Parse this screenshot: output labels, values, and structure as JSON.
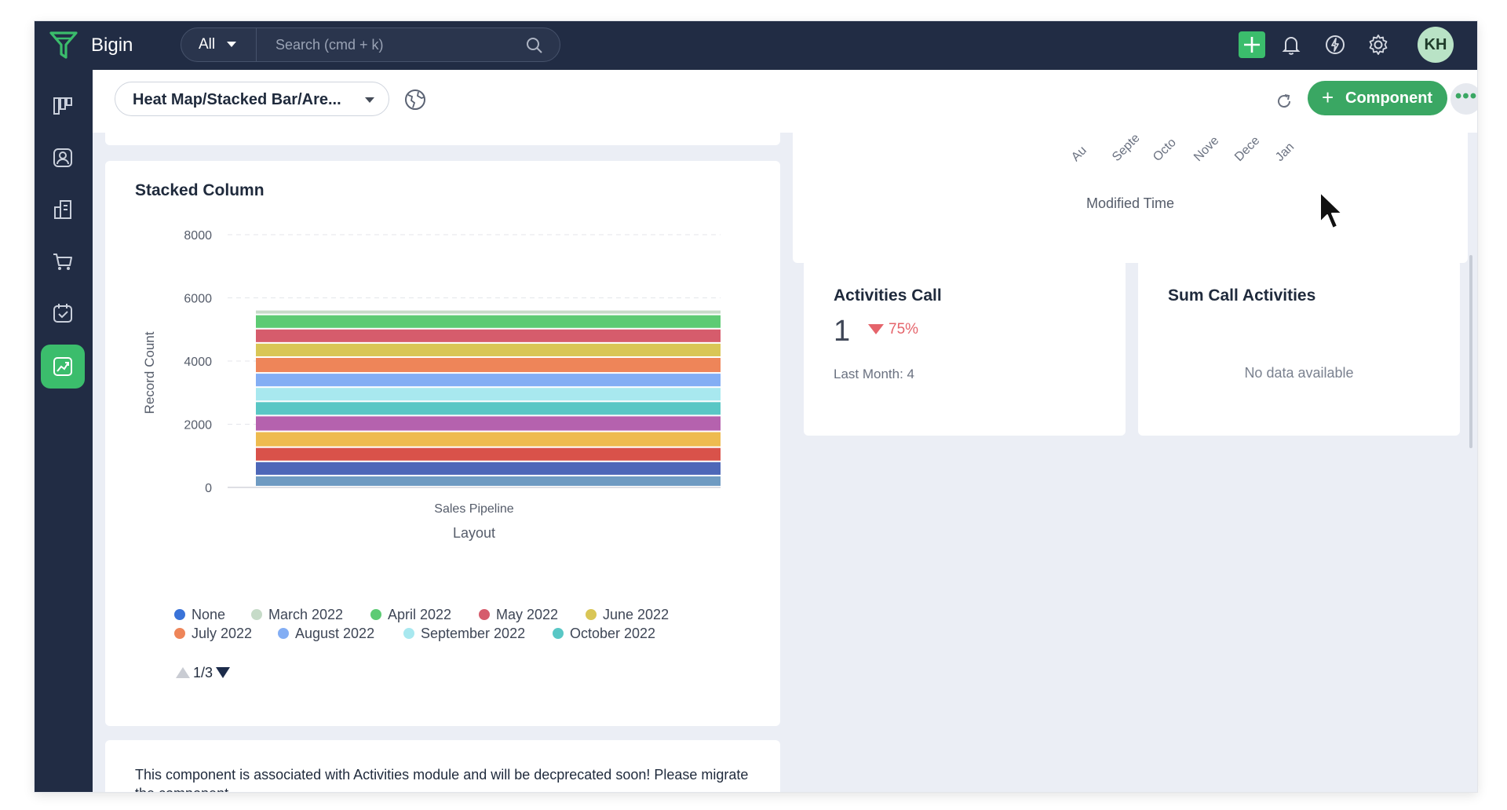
{
  "app": {
    "title": "Bigin"
  },
  "search": {
    "scope": "All",
    "placeholder": "Search (cmd + k)"
  },
  "topbar": {
    "icons": [
      "add-icon",
      "bell-icon",
      "feature-icon",
      "gear-icon"
    ],
    "avatar_initials": "KH"
  },
  "sidebar": {
    "items": [
      {
        "name": "pipelines",
        "icon": "pipeline-icon"
      },
      {
        "name": "contacts",
        "icon": "contact-icon"
      },
      {
        "name": "companies",
        "icon": "company-icon"
      },
      {
        "name": "products",
        "icon": "cart-icon"
      },
      {
        "name": "activities",
        "icon": "calendar-check-icon"
      },
      {
        "name": "dashboards",
        "icon": "chart-icon",
        "active": true
      }
    ]
  },
  "subheader": {
    "dashboard_name": "Heat Map/Stacked Bar/Are...",
    "add_component_label": "Component",
    "more_label": "•••"
  },
  "stacked_column": {
    "title": "Stacked Column",
    "legend": [
      {
        "label": "None",
        "color": "#3a73d8"
      },
      {
        "label": "March 2022",
        "color": "#c6dbc8"
      },
      {
        "label": "April 2022",
        "color": "#5dcb74"
      },
      {
        "label": "May 2022",
        "color": "#d65c6c"
      },
      {
        "label": "June 2022",
        "color": "#d9c656"
      },
      {
        "label": "July 2022",
        "color": "#ee8559"
      },
      {
        "label": "August 2022",
        "color": "#83aef4"
      },
      {
        "label": "September 2022",
        "color": "#a8e8ef"
      },
      {
        "label": "October 2022",
        "color": "#59c7c5"
      }
    ],
    "legend_page": "1/3"
  },
  "chart_data": {
    "type": "bar",
    "stacked": true,
    "categories": [
      "Sales Pipeline"
    ],
    "xlabel": "Layout",
    "ylabel": "Record Count",
    "ylim": [
      0,
      8000
    ],
    "yticks": [
      0,
      2000,
      4000,
      6000,
      8000
    ],
    "grid": true,
    "legend_position": "bottom",
    "series": [
      {
        "name": "None",
        "values": [
          350
        ],
        "color": "#6f9bc2"
      },
      {
        "name": "",
        "values": [
          450
        ],
        "color": "#4d67b8"
      },
      {
        "name": "",
        "values": [
          450
        ],
        "color": "#d9524a"
      },
      {
        "name": "",
        "values": [
          500
        ],
        "color": "#eebb4f"
      },
      {
        "name": "",
        "values": [
          500
        ],
        "color": "#b562ae"
      },
      {
        "name": "October 2022",
        "values": [
          450
        ],
        "color": "#59c7c5"
      },
      {
        "name": "September 2022",
        "values": [
          450
        ],
        "color": "#a8e8ef"
      },
      {
        "name": "August 2022",
        "values": [
          450
        ],
        "color": "#83aef4"
      },
      {
        "name": "July 2022",
        "values": [
          500
        ],
        "color": "#ee8559"
      },
      {
        "name": "June 2022",
        "values": [
          450
        ],
        "color": "#d9c656"
      },
      {
        "name": "May 2022",
        "values": [
          450
        ],
        "color": "#d65c6c"
      },
      {
        "name": "April 2022",
        "values": [
          450
        ],
        "color": "#5dcb74"
      },
      {
        "name": "March 2022",
        "values": [
          150
        ],
        "color": "#c6dbc8"
      }
    ]
  },
  "modified_time": {
    "axis_title": "Modified Time",
    "visible_ticks": [
      "Au",
      "Septe",
      "Octo",
      "Nove",
      "Dece",
      "Jan"
    ]
  },
  "activities_call": {
    "title": "Activities Call",
    "value": "1",
    "change": "75%",
    "last_month": "Last Month: 4",
    "trend": "down"
  },
  "sum_call_activities": {
    "title": "Sum Call Activities",
    "empty_message": "No data available"
  },
  "deprecation": {
    "message": "This component is associated with Activities module and will be decprecated soon! Please migrate the component."
  }
}
